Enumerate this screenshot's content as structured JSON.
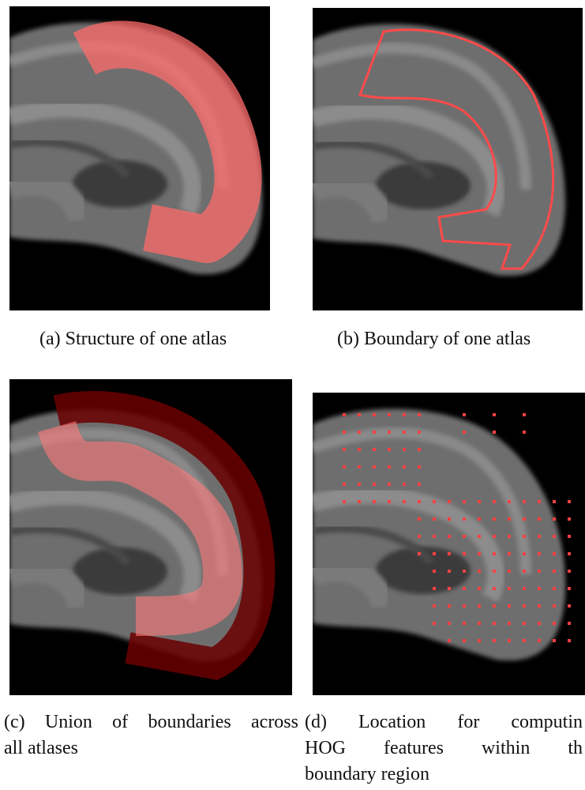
{
  "panels": [
    {
      "caption_lines": [
        "(a)  Structure of one atlas"
      ]
    },
    {
      "caption_lines": [
        "(b)  Boundary of one atlas"
      ]
    },
    {
      "caption_lines": [
        "(c)  Union of boundaries across",
        "all atlases"
      ]
    },
    {
      "caption_lines": [
        "(d)  Location for computin",
        "HOG features within th",
        "boundary region"
      ]
    }
  ]
}
